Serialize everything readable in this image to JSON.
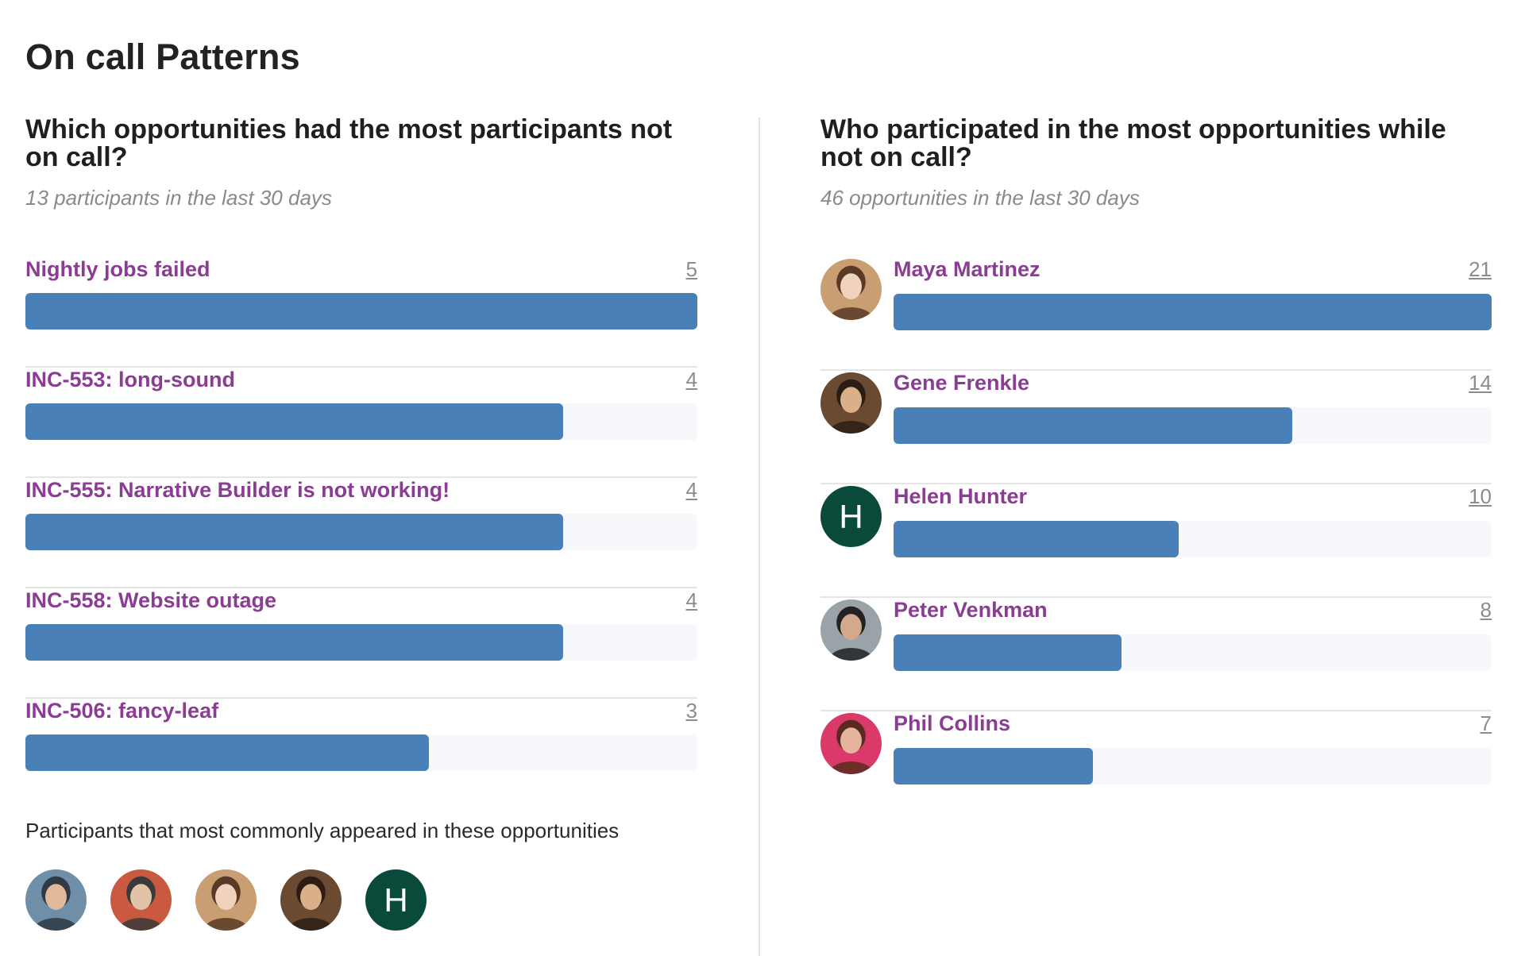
{
  "page": {
    "title": "On call Patterns"
  },
  "left": {
    "heading": "Which opportunities had the most participants not on call?",
    "subtitle": "13 participants in the last 30 days",
    "max": 5,
    "items": [
      {
        "label": "Nightly jobs failed",
        "count": "5",
        "value": 5
      },
      {
        "label": "INC-553: long-sound",
        "count": "4",
        "value": 4
      },
      {
        "label": "INC-555: Narrative Builder is not working!",
        "count": "4",
        "value": 4
      },
      {
        "label": "INC-558: Website outage",
        "count": "4",
        "value": 4
      },
      {
        "label": "INC-506: fancy-leaf",
        "count": "3",
        "value": 3
      }
    ],
    "common_title": "Participants that most commonly appeared in these opportunities",
    "common_avatars": [
      {
        "type": "photo",
        "palette": [
          "#6f8fa8",
          "#e0b89a",
          "#2f3a44"
        ]
      },
      {
        "type": "photo",
        "palette": [
          "#c9593f",
          "#e3c3a8",
          "#3a3a3a"
        ]
      },
      {
        "type": "photo",
        "palette": [
          "#c89e72",
          "#f0d2bd",
          "#5a3a26"
        ]
      },
      {
        "type": "photo",
        "palette": [
          "#6a4a30",
          "#d9b08a",
          "#2b1d14"
        ]
      },
      {
        "type": "initial",
        "initial": "H"
      }
    ]
  },
  "right": {
    "heading": "Who participated in the most opportunities while not on call?",
    "subtitle": "46 opportunities in the last 30 days",
    "max": 21,
    "items": [
      {
        "name": "Maya Martinez",
        "count": "21",
        "value": 21,
        "avatar": {
          "type": "photo",
          "palette": [
            "#c89e72",
            "#f0d2bd",
            "#5a3a26"
          ]
        }
      },
      {
        "name": "Gene Frenkle",
        "count": "14",
        "value": 14,
        "avatar": {
          "type": "photo",
          "palette": [
            "#6a4a30",
            "#d9b08a",
            "#2b1d14"
          ]
        }
      },
      {
        "name": "Helen Hunter",
        "count": "10",
        "value": 10,
        "avatar": {
          "type": "initial",
          "initial": "H"
        }
      },
      {
        "name": "Peter Venkman",
        "count": "8",
        "value": 8,
        "avatar": {
          "type": "photo",
          "palette": [
            "#9aa3a8",
            "#d2a98b",
            "#222222"
          ]
        }
      },
      {
        "name": "Phil Collins",
        "count": "7",
        "value": 7,
        "avatar": {
          "type": "photo",
          "palette": [
            "#d93a6a",
            "#e6b39d",
            "#5a2a20"
          ]
        }
      }
    ]
  },
  "colors": {
    "bar": "#4a80b8",
    "track": "#f6f8fb",
    "link": "#8a3d93",
    "initial_avatar_bg": "#0a4a3a"
  }
}
